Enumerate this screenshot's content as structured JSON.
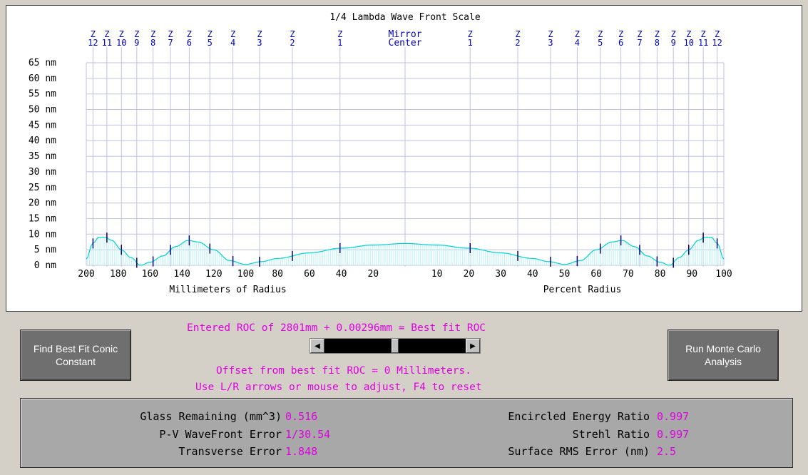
{
  "chart_data": {
    "type": "area",
    "title": "1/4 Lambda Wave Front Scale",
    "y_ticks": [
      "65 nm",
      "60 nm",
      "55 nm",
      "50 nm",
      "45 nm",
      "40 nm",
      "35 nm",
      "30 nm",
      "25 nm",
      "20 nm",
      "15 nm",
      "10 nm",
      "5 nm",
      "0 nm"
    ],
    "y_range": [
      0,
      65
    ],
    "x_ticks_left": [
      "200",
      "180",
      "160",
      "140",
      "120",
      "100",
      "80",
      "60",
      "40",
      "20"
    ],
    "x_ticks_right": [
      "10",
      "20",
      "30",
      "40",
      "50",
      "60",
      "70",
      "80",
      "90",
      "100"
    ],
    "xlabel_left": "Millimeters of Radius",
    "xlabel_right": "Percent Radius",
    "center_label_1": "Mirror",
    "center_label_2": "Center",
    "zone_letter": "Z",
    "zones": [
      "1",
      "2",
      "3",
      "4",
      "5",
      "6",
      "7",
      "8",
      "9",
      "10",
      "11",
      "12"
    ],
    "profile_percent_radius": [
      0,
      10,
      20,
      30,
      40,
      45,
      50,
      55,
      60,
      65,
      68,
      72,
      76,
      80,
      83,
      86,
      89,
      92,
      94,
      96,
      98,
      100
    ],
    "profile_nm": [
      7,
      6.5,
      5.5,
      4,
      2.2,
      1.2,
      0.3,
      1.5,
      5,
      7.5,
      8,
      6,
      3,
      1,
      0,
      2.5,
      5,
      8,
      9,
      9,
      7,
      2
    ],
    "grid": true
  },
  "buttons": {
    "conic": [
      "Find Best Fit Conic",
      "Constant"
    ],
    "monte": [
      "Run Monte Carlo",
      "Analysis"
    ]
  },
  "roc_text": "Entered ROC of 2801mm + 0.00296mm = Best fit ROC",
  "offset_text": "Offset from best fit ROC = 0 Millimeters.",
  "hint_text": "Use L/R arrows or mouse to adjust, F4 to reset",
  "stats": {
    "glass_label": "Glass Remaining (mm^3)",
    "glass_value": "0.516",
    "pv_label": "P-V WaveFront Error",
    "pv_value": "1/30.54",
    "transverse_label": "Transverse Error",
    "transverse_value": "1.848",
    "energy_label": "Encircled Energy Ratio",
    "energy_value": "0.997",
    "strehl_label": "Strehl Ratio",
    "strehl_value": "0.997",
    "rms_label": "Surface RMS Error (nm)",
    "rms_value": "2.5"
  },
  "colors": {
    "grid": "#c0c0e0",
    "curve": "#00d0d0",
    "fill": "#bff3f3",
    "zone_text": "#0000c0",
    "accent": "#e000e0"
  }
}
